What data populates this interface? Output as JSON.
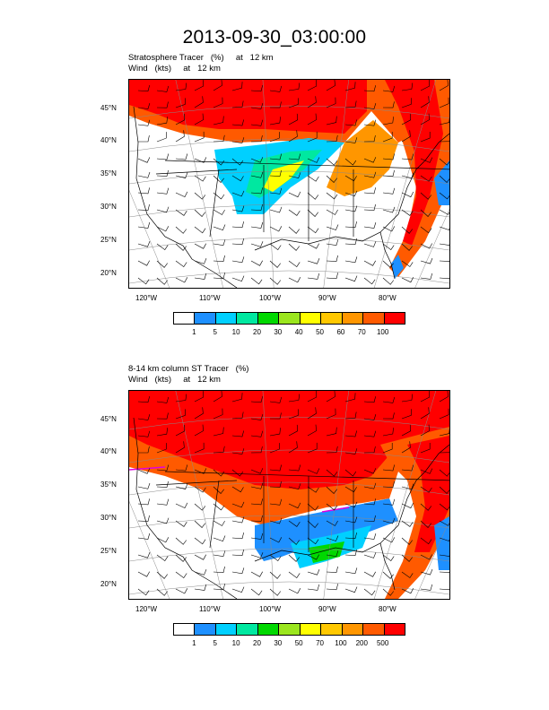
{
  "title": "2013-09-30_03:00:00",
  "panels": [
    {
      "title_line1": "Stratosphere Tracer   (%)     at   12 km",
      "title_line2": "Wind   (kts)     at   12 km",
      "lat_labels": [
        "45°N",
        "40°N",
        "35°N",
        "30°N",
        "25°N",
        "20°N"
      ],
      "lon_labels": [
        "120°W",
        "110°W",
        "100°W",
        "90°W",
        "80°W"
      ],
      "legend_levels": [
        "1",
        "5",
        "10",
        "20",
        "30",
        "40",
        "50",
        "60",
        "70",
        "100"
      ]
    },
    {
      "title_line1": "8-14 km column ST Tracer   (%)",
      "title_line2": "Wind   (kts)     at   12 km",
      "lat_labels": [
        "45°N",
        "40°N",
        "35°N",
        "30°N",
        "25°N",
        "20°N"
      ],
      "lon_labels": [
        "120°W",
        "110°W",
        "100°W",
        "90°W",
        "80°W"
      ],
      "legend_levels": [
        "1",
        "5",
        "10",
        "20",
        "30",
        "50",
        "70",
        "100",
        "200",
        "500"
      ]
    }
  ],
  "chart_data": [
    {
      "type": "heatmap",
      "variable": "Stratosphere Tracer (%) at 12 km",
      "overlay": "Wind barbs (kts) at 12 km",
      "longitudes": [
        "120°W",
        "110°W",
        "100°W",
        "90°W",
        "80°W"
      ],
      "latitudes": [
        "45°N",
        "40°N",
        "35°N",
        "30°N",
        "25°N",
        "20°N"
      ],
      "color_levels": [
        1,
        5,
        10,
        20,
        30,
        40,
        50,
        60,
        70,
        100
      ],
      "colors": [
        "#ffffff",
        "#1e90ff",
        "#00d0ff",
        "#00e8a0",
        "#00d800",
        "#9be61e",
        "#ffff00",
        "#ffc800",
        "#ff9600",
        "#ff5a00",
        "#ff0000"
      ]
    },
    {
      "type": "heatmap",
      "variable": "8-14 km column ST Tracer (%)",
      "overlay": "Wind barbs (kts) at 12 km",
      "longitudes": [
        "120°W",
        "110°W",
        "100°W",
        "90°W",
        "80°W"
      ],
      "latitudes": [
        "45°N",
        "40°N",
        "35°N",
        "30°N",
        "25°N",
        "20°N"
      ],
      "color_levels": [
        1,
        5,
        10,
        20,
        30,
        50,
        70,
        100,
        200,
        500
      ],
      "colors": [
        "#ffffff",
        "#1e90ff",
        "#00d0ff",
        "#00e8a0",
        "#00d800",
        "#9be61e",
        "#ffff00",
        "#ffc800",
        "#ff9600",
        "#ff5a00",
        "#ff0000"
      ]
    }
  ]
}
